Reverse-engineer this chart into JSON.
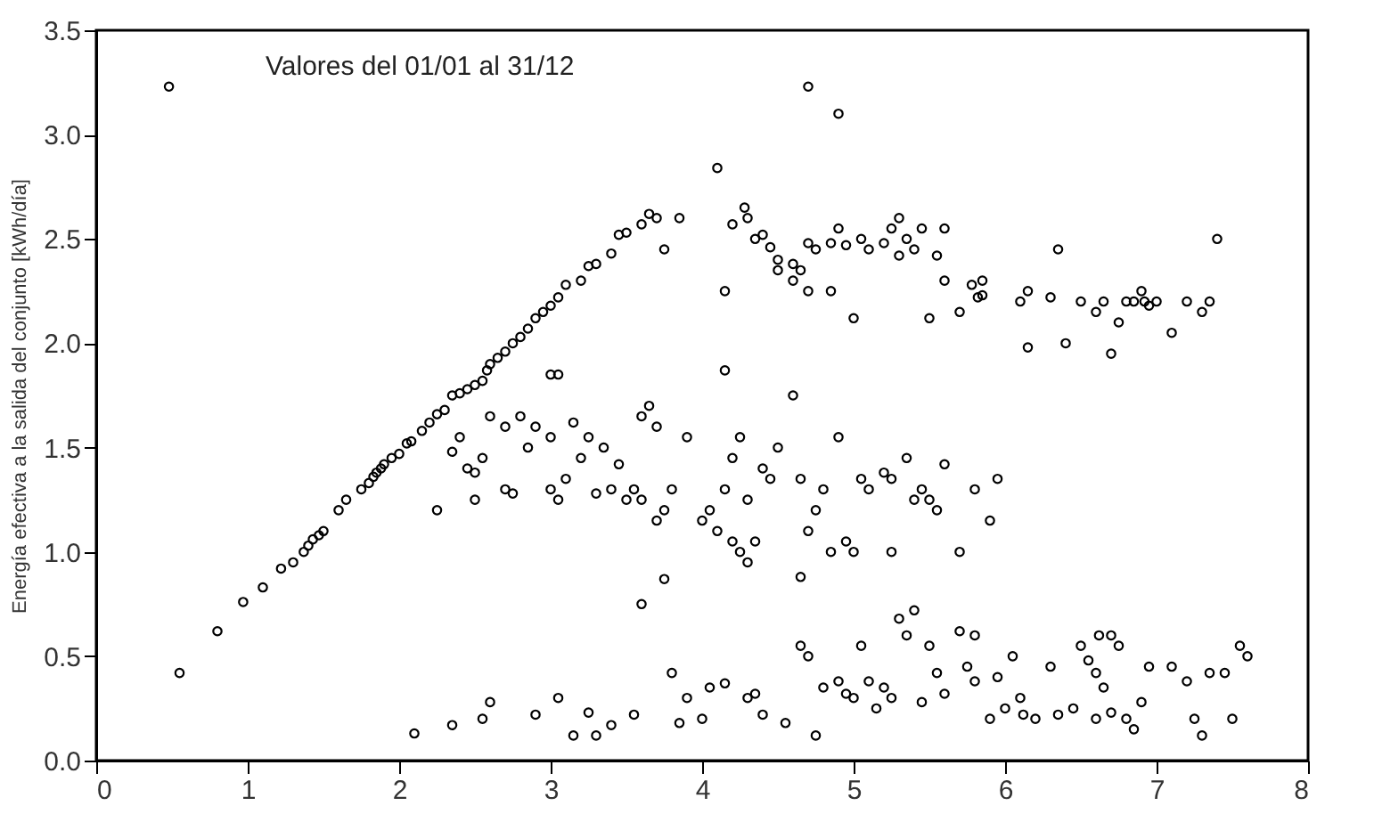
{
  "chart_data": {
    "type": "scatter",
    "ylabel": "Energía efectiva a la salida del conjunto [kWh/día]",
    "annotations": [
      "Valores del 01/01 al 31/12"
    ],
    "xlim": [
      0,
      8
    ],
    "xticks": [
      0,
      1,
      2,
      3,
      4,
      5,
      6,
      7,
      8
    ],
    "ylim": [
      0,
      3.5
    ],
    "yticks": [
      {
        "value": 0,
        "label": "0.0"
      },
      {
        "value": 0.5,
        "label": "0.5"
      },
      {
        "value": 1,
        "label": "1.0"
      },
      {
        "value": 1.5,
        "label": "1.5"
      },
      {
        "value": 2,
        "label": "2.0"
      },
      {
        "value": 2.5,
        "label": "2.5"
      },
      {
        "value": 3,
        "label": "3.0"
      },
      {
        "value": 3.5,
        "label": "3.5"
      }
    ],
    "grid": false,
    "legend": false,
    "marker": "circle",
    "series": [
      {
        "color": "#000000",
        "x": [
          0.48,
          0.55,
          0.8,
          0.97,
          1.1,
          1.22,
          1.3,
          1.37,
          1.4,
          1.43,
          1.47,
          1.5,
          1.6,
          1.65,
          1.75,
          1.8,
          1.83,
          1.85,
          1.88,
          1.9,
          1.95,
          2.0,
          2.05,
          2.08,
          2.15,
          2.2,
          2.25,
          2.3,
          2.35,
          2.4,
          2.45,
          2.5,
          2.55,
          2.58,
          2.6,
          2.65,
          2.7,
          2.75,
          2.8,
          2.85,
          2.9,
          2.95,
          3.0,
          3.05,
          3.1,
          3.2,
          3.25,
          3.3,
          3.4,
          3.45,
          3.5,
          3.6,
          3.65,
          3.7,
          3.85,
          3.75,
          4.1,
          4.7,
          4.9,
          4.2,
          4.28,
          4.3,
          4.35,
          4.4,
          4.45,
          4.5,
          4.6,
          4.65,
          4.7,
          4.75,
          4.85,
          4.9,
          4.95,
          5.05,
          5.1,
          5.2,
          5.25,
          5.3,
          5.35,
          5.4,
          5.45,
          5.55,
          5.6,
          4.15,
          4.15,
          4.5,
          5.6,
          5.78,
          5.82,
          5.85,
          5.85,
          6.1,
          6.15,
          6.15,
          6.3,
          6.35,
          6.4,
          6.5,
          6.6,
          6.65,
          6.7,
          6.75,
          6.8,
          6.85,
          6.9,
          6.95,
          7.0,
          7.1,
          7.2,
          7.3,
          7.35,
          7.4,
          6.92,
          4.7,
          5.0,
          5.5,
          5.7,
          4.85,
          5.3,
          4.6,
          2.25,
          2.35,
          2.4,
          2.45,
          2.5,
          2.5,
          2.55,
          2.6,
          2.7,
          2.7,
          2.75,
          2.8,
          2.85,
          2.9,
          3.0,
          3.0,
          3.05,
          3.0,
          3.05,
          3.1,
          3.15,
          3.2,
          3.25,
          3.3,
          3.35,
          3.4,
          3.45,
          3.5,
          3.55,
          3.6,
          3.65,
          3.7,
          3.7,
          3.75,
          3.8,
          3.6,
          3.9,
          4.0,
          4.05,
          4.1,
          4.15,
          4.2,
          4.25,
          4.3,
          4.2,
          4.25,
          4.3,
          4.35,
          4.4,
          4.45,
          4.5,
          4.6,
          4.65,
          4.7,
          4.75,
          4.8,
          4.85,
          4.9,
          4.95,
          5.0,
          5.05,
          5.1,
          5.2,
          5.25,
          5.35,
          5.4,
          5.45,
          5.5,
          5.55,
          5.6,
          5.7,
          5.8,
          5.9,
          5.95,
          3.6,
          3.75,
          4.65,
          5.25,
          2.1,
          2.35,
          2.55,
          2.6,
          2.9,
          3.05,
          3.15,
          3.25,
          3.3,
          3.4,
          3.55,
          3.8,
          3.85,
          3.9,
          4.0,
          4.05,
          4.15,
          4.3,
          4.35,
          4.4,
          4.55,
          4.65,
          4.7,
          4.75,
          4.8,
          4.9,
          4.95,
          5.0,
          5.05,
          5.1,
          5.15,
          5.2,
          5.25,
          5.3,
          5.35,
          5.4,
          5.45,
          5.5,
          5.55,
          5.6,
          5.7,
          5.75,
          5.8,
          5.9,
          5.95,
          6.0,
          6.05,
          6.1,
          6.12,
          6.2,
          6.3,
          6.35,
          6.45,
          6.5,
          6.55,
          6.6,
          6.65,
          6.7,
          6.75,
          6.8,
          6.85,
          6.9,
          6.95,
          7.1,
          7.2,
          7.25,
          7.3,
          7.35,
          7.45,
          7.55,
          7.6,
          7.5,
          6.62,
          5.8,
          6.6,
          6.7
        ],
        "values": [
          3.23,
          0.42,
          0.62,
          0.76,
          0.83,
          0.92,
          0.95,
          1.0,
          1.03,
          1.06,
          1.08,
          1.1,
          1.2,
          1.25,
          1.3,
          1.33,
          1.36,
          1.38,
          1.4,
          1.42,
          1.45,
          1.47,
          1.52,
          1.53,
          1.58,
          1.62,
          1.66,
          1.68,
          1.75,
          1.76,
          1.78,
          1.8,
          1.82,
          1.87,
          1.9,
          1.93,
          1.96,
          2.0,
          2.03,
          2.07,
          2.12,
          2.15,
          2.18,
          2.22,
          2.28,
          2.3,
          2.37,
          2.38,
          2.43,
          2.52,
          2.53,
          2.57,
          2.62,
          2.6,
          2.6,
          2.45,
          2.84,
          3.23,
          3.1,
          2.57,
          2.65,
          2.6,
          2.5,
          2.52,
          2.46,
          2.4,
          2.38,
          2.35,
          2.48,
          2.45,
          2.48,
          2.55,
          2.47,
          2.5,
          2.45,
          2.48,
          2.55,
          2.6,
          2.5,
          2.45,
          2.55,
          2.42,
          2.55,
          2.25,
          1.87,
          2.35,
          2.3,
          2.28,
          2.22,
          2.23,
          2.3,
          2.2,
          2.25,
          1.98,
          2.22,
          2.45,
          2.0,
          2.2,
          2.15,
          2.2,
          1.95,
          2.1,
          2.2,
          2.2,
          2.25,
          2.18,
          2.2,
          2.05,
          2.2,
          2.15,
          2.2,
          2.5,
          2.2,
          2.25,
          2.12,
          2.12,
          2.15,
          2.25,
          2.42,
          2.3,
          1.2,
          1.48,
          1.55,
          1.4,
          1.38,
          1.25,
          1.45,
          1.65,
          1.3,
          1.6,
          1.28,
          1.65,
          1.5,
          1.6,
          1.55,
          1.85,
          1.85,
          1.3,
          1.25,
          1.35,
          1.62,
          1.45,
          1.55,
          1.28,
          1.5,
          1.3,
          1.42,
          1.25,
          1.3,
          1.25,
          1.7,
          1.6,
          1.15,
          1.2,
          1.3,
          1.65,
          1.55,
          1.15,
          1.2,
          1.1,
          1.3,
          1.45,
          1.55,
          1.25,
          1.05,
          1.0,
          0.95,
          1.05,
          1.4,
          1.35,
          1.5,
          1.75,
          1.35,
          1.1,
          1.2,
          1.3,
          1.0,
          1.55,
          1.05,
          1.0,
          1.35,
          1.3,
          1.38,
          1.35,
          1.45,
          1.25,
          1.3,
          1.25,
          1.2,
          1.42,
          1.0,
          1.3,
          1.15,
          1.35,
          0.75,
          0.87,
          0.88,
          1.0,
          0.13,
          0.17,
          0.2,
          0.28,
          0.22,
          0.3,
          0.12,
          0.23,
          0.12,
          0.17,
          0.22,
          0.42,
          0.18,
          0.3,
          0.2,
          0.35,
          0.37,
          0.3,
          0.32,
          0.22,
          0.18,
          0.55,
          0.5,
          0.12,
          0.35,
          0.38,
          0.32,
          0.3,
          0.55,
          0.38,
          0.25,
          0.35,
          0.3,
          0.68,
          0.6,
          0.72,
          0.28,
          0.55,
          0.42,
          0.32,
          0.62,
          0.45,
          0.38,
          0.2,
          0.4,
          0.25,
          0.5,
          0.3,
          0.22,
          0.2,
          0.45,
          0.22,
          0.25,
          0.55,
          0.48,
          0.42,
          0.35,
          0.6,
          0.55,
          0.2,
          0.15,
          0.28,
          0.45,
          0.45,
          0.38,
          0.2,
          0.12,
          0.42,
          0.42,
          0.55,
          0.5,
          0.2,
          0.6,
          0.6,
          0.2,
          0.23
        ]
      }
    ]
  }
}
